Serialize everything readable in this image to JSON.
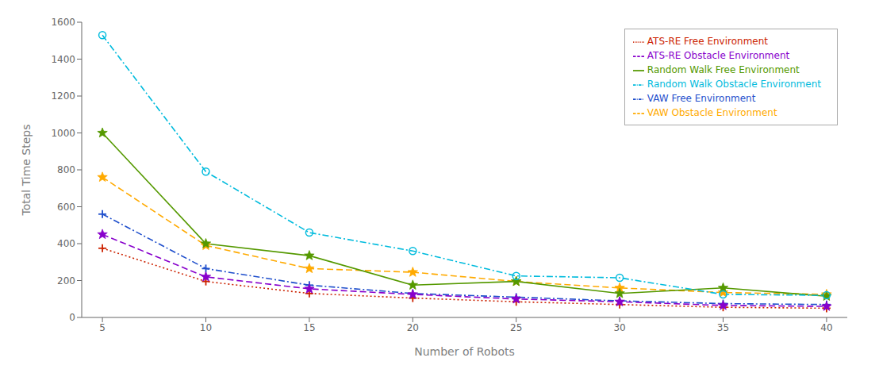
{
  "chart_data": {
    "type": "line",
    "xlabel": "Number of Robots",
    "ylabel": "Total Time Steps",
    "x": [
      5,
      10,
      15,
      20,
      25,
      30,
      35,
      40
    ],
    "series": [
      {
        "name": "VAW Free Environment",
        "color": "#1f4fcc",
        "line_style": "dashdot",
        "marker": "plus",
        "values": [
          560,
          265,
          175,
          130,
          110,
          90,
          75,
          70
        ]
      },
      {
        "name": "ATS-RE Free Environment",
        "color": "#cc2200",
        "line_style": "dotted",
        "marker": "plus",
        "values": [
          375,
          195,
          130,
          105,
          85,
          70,
          55,
          50
        ]
      },
      {
        "name": "VAW Obstacle Environment",
        "color": "#ffaa00",
        "line_style": "dashed",
        "marker": "star",
        "values": [
          760,
          390,
          265,
          245,
          195,
          160,
          135,
          125
        ]
      },
      {
        "name": "ATS-RE Obstacle Environment",
        "color": "#8800cc",
        "line_style": "dashed",
        "marker": "star",
        "values": [
          450,
          220,
          155,
          125,
          100,
          85,
          65,
          60
        ]
      },
      {
        "name": "Random Walk Free Environment",
        "color": "#559900",
        "line_style": "solid",
        "marker": "star",
        "values": [
          1000,
          400,
          335,
          175,
          195,
          130,
          160,
          115
        ]
      },
      {
        "name": "Random Walk Obstacle Environment",
        "color": "#00bbdd",
        "line_style": "dashdot",
        "marker": "circle",
        "values": [
          1530,
          790,
          460,
          360,
          225,
          215,
          125,
          120
        ]
      }
    ],
    "xlim": [
      4,
      41
    ],
    "ylim": [
      0,
      1600
    ],
    "xticks": [
      5,
      10,
      15,
      20,
      25,
      30,
      35,
      40
    ],
    "yticks": [
      0,
      200,
      400,
      600,
      800,
      1000,
      1200,
      1400,
      1600
    ],
    "legend": "upper right"
  }
}
